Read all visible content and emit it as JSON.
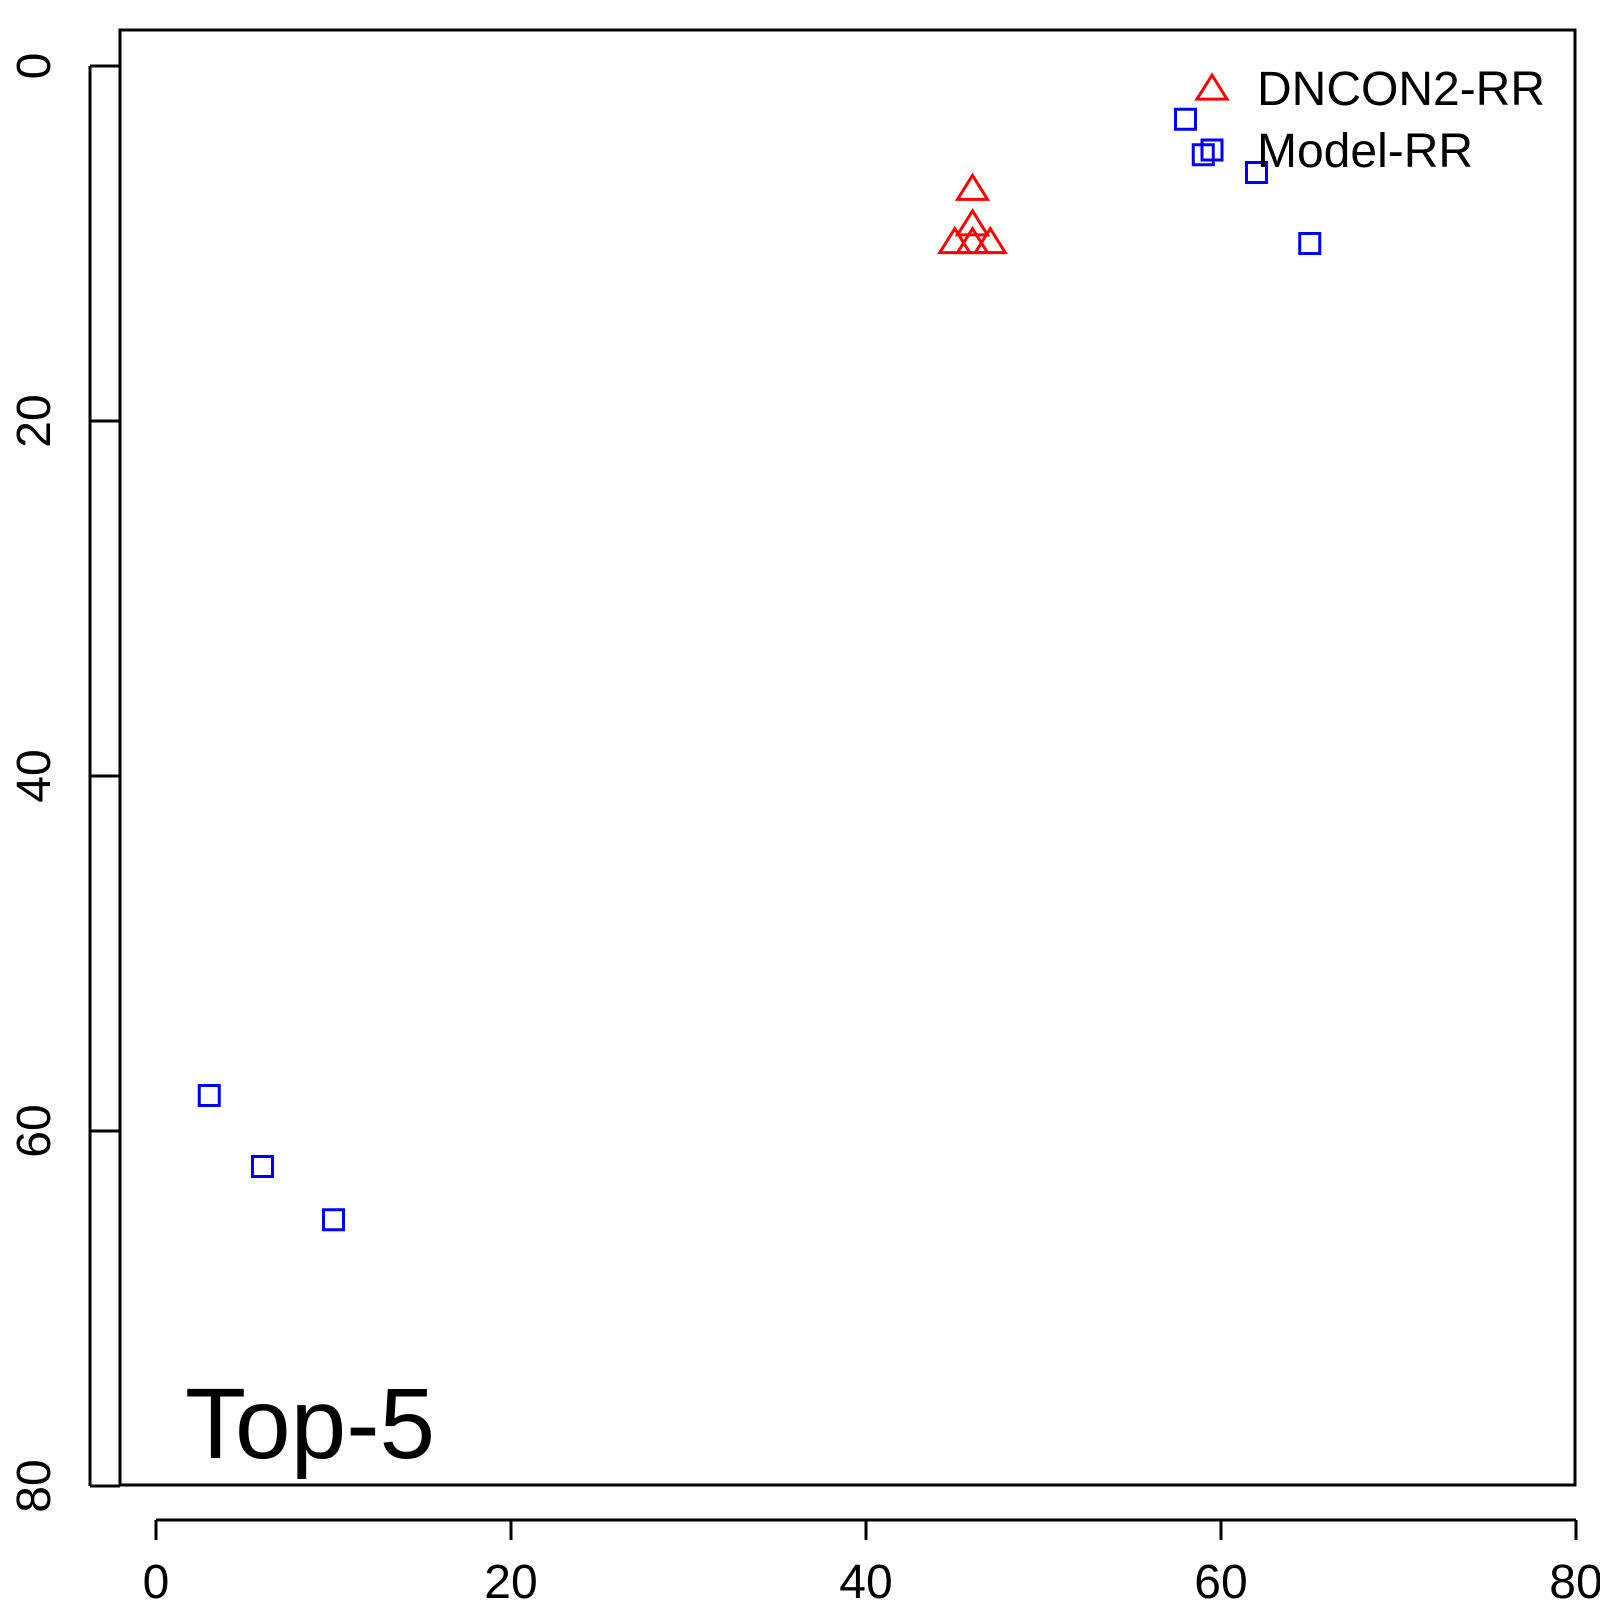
{
  "chart_data": {
    "type": "scatter",
    "title": "",
    "xlabel": "",
    "ylabel": "",
    "xlim": [
      -2,
      80
    ],
    "ylim": [
      0,
      80
    ],
    "y_reversed": true,
    "x_ticks": [
      0,
      20,
      40,
      60,
      80
    ],
    "y_ticks": [
      0,
      20,
      40,
      60,
      80
    ],
    "annotation": "Top-5",
    "legend_position": "top-right",
    "series": [
      {
        "name": "DNCON2-RR",
        "marker": "triangle",
        "color": "#ff0000",
        "points": [
          [
            46,
            7
          ],
          [
            46,
            9
          ],
          [
            46,
            10
          ],
          [
            47,
            10
          ],
          [
            45,
            10
          ]
        ]
      },
      {
        "name": "Model-RR",
        "marker": "square",
        "color": "#0000ff",
        "points": [
          [
            58,
            3
          ],
          [
            59,
            5
          ],
          [
            62,
            6
          ],
          [
            65,
            10
          ],
          [
            3,
            58
          ],
          [
            6,
            62
          ],
          [
            10,
            65
          ]
        ]
      }
    ]
  }
}
